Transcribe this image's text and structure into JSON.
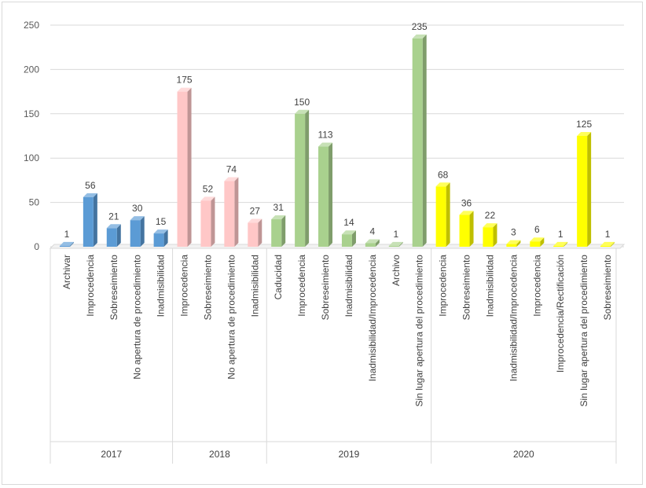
{
  "chart_data": {
    "type": "bar",
    "ylim": [
      0,
      250
    ],
    "yticks": [
      0,
      50,
      100,
      150,
      200,
      250
    ],
    "grid": true,
    "groups": [
      {
        "label": "2017",
        "color": "#5b9bd5",
        "categories": [
          "Archivar",
          "Improcedencia",
          "Sobreseimiento",
          "No apertura de procedimiento",
          "Inadmisibilidad"
        ],
        "values": [
          1,
          56,
          21,
          30,
          15
        ]
      },
      {
        "label": "2018",
        "color": "#ffc7c7",
        "categories": [
          "Improcedencia",
          "Sobreseimiento",
          "No apertura de procedimiento",
          "Inadmisibilidad"
        ],
        "values": [
          175,
          52,
          74,
          27
        ]
      },
      {
        "label": "2019",
        "color": "#a9d18e",
        "categories": [
          "Caducidad",
          "Improcedencia",
          "Sobreseimiento",
          "Inadmisibilidad",
          "Inadmisibilidad/Improcedencia",
          "Archivo",
          "Sin lugar apertura del procedimiento"
        ],
        "values": [
          31,
          150,
          113,
          14,
          4,
          1,
          235
        ]
      },
      {
        "label": "2020",
        "color": "#ffff00",
        "categories": [
          "Improcedencia",
          "Sobreseimiento",
          "Inadmisibilidad",
          "Inadmisibilidad/Improcedencia",
          "Improcedencia",
          "Improcedencia/Rectificación",
          "Sin lugar apertura del procedimiento",
          "Sobreseimiento"
        ],
        "values": [
          68,
          36,
          22,
          3,
          6,
          1,
          125,
          1
        ]
      }
    ]
  }
}
